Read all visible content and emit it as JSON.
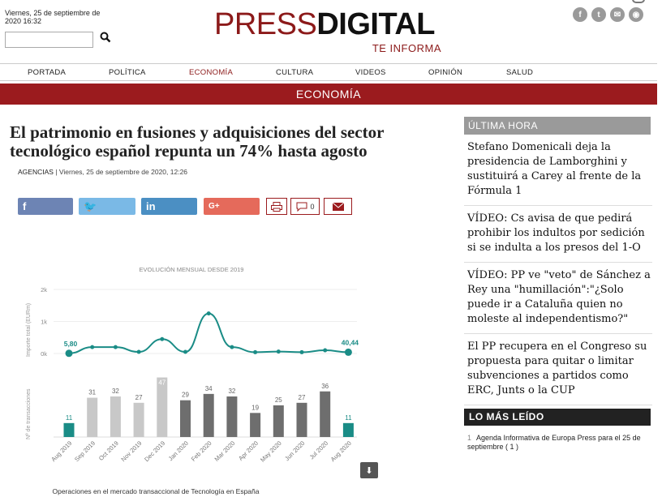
{
  "header": {
    "date_line1": "Viernes, 25 de septiembre de",
    "date_line2": "2020 16:32",
    "search_placeholder": "",
    "logo_press": "PRESS",
    "logo_digital": "DIGITAL",
    "logo_tagline": "TE INFORMA",
    "social_icons": [
      "facebook-icon",
      "twitter-icon",
      "mail-icon",
      "rss-icon"
    ]
  },
  "nav": {
    "items": [
      "PORTADA",
      "POLÍTICA",
      "ECONOMÍA",
      "CULTURA",
      "VIDEOS",
      "OPINIÓN",
      "SALUD"
    ],
    "active": "ECONOMÍA"
  },
  "section": {
    "title": "ECONOMÍA"
  },
  "article": {
    "headline": "El patrimonio en fusiones y adquisiciones del sector tecnológico español repunta un 74% hasta agosto",
    "byline_source": "AGENCIAS",
    "byline_rest": " | Viernes, 25 de septiembre de 2020, 12:26",
    "comment_count": "0"
  },
  "sidebar": {
    "ultima_hora_title": "ÚLTIMA HORA",
    "ultima_hora": [
      "Stefano Domenicali deja la presidencia de Lamborghini y sustituirá a Carey al frente de la Fórmula 1",
      "VÍDEO: Cs avisa de que pedirá prohibir los indultos por sedición si se indulta a los presos del 1-O",
      "VÍDEO: PP ve \"veto\" de Sánchez a Rey una \"humillación\":\"¿Solo puede ir a Cataluña quien no moleste al independentismo?\"",
      "El PP recupera en el Congreso su propuesta para quitar o limitar subvenciones a partidos como ERC, Junts o la CUP"
    ],
    "mas_leido_title": "LO MÁS LEÍDO",
    "mas_leido": [
      {
        "num": "1",
        "text": "Agenda Informativa de Europa Press para el 25 de septiembre ( 1 )"
      }
    ]
  },
  "chart_data": {
    "type": "line+bar",
    "title": "EVOLUCIÓN MENSUAL DESDE 2019",
    "caption": "Operaciones en el mercado transaccional de Tecnología en España",
    "categories": [
      "Aug 2019",
      "Sep 2019",
      "Oct 2019",
      "Nov 2019",
      "Dec 2019",
      "Jan 2020",
      "Feb 2020",
      "Mar 2020",
      "Apr 2020",
      "May 2020",
      "Jun 2020",
      "Jul 2020",
      "Aug 2020"
    ],
    "line": {
      "ylabel": "Importe total (EURm)",
      "yticks": [
        "2k",
        "1k",
        "0k"
      ],
      "ylim": [
        0,
        2000
      ],
      "values": [
        5.8,
        200,
        200,
        50,
        450,
        50,
        1250,
        200,
        40,
        60,
        40,
        100,
        40.44
      ],
      "labels": {
        "first": "5,80",
        "last": "40,44"
      }
    },
    "bars": {
      "ylabel": "Nº de transacciones",
      "values": [
        11,
        31,
        32,
        27,
        47,
        29,
        34,
        32,
        19,
        25,
        27,
        36,
        11
      ],
      "colors": [
        "#1a8c86",
        "#c8c8c8",
        "#c8c8c8",
        "#c8c8c8",
        "#c8c8c8",
        "#6e6e6e",
        "#6e6e6e",
        "#6e6e6e",
        "#6e6e6e",
        "#6e6e6e",
        "#6e6e6e",
        "#6e6e6e",
        "#1a8c86"
      ]
    }
  }
}
